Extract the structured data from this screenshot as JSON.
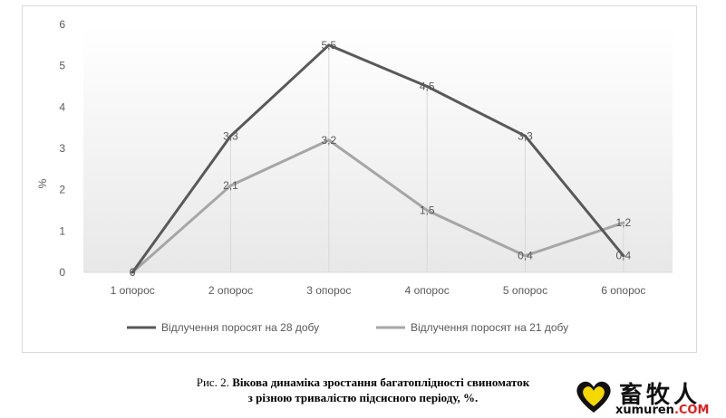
{
  "chart_data": {
    "type": "line",
    "ylabel": "%",
    "ylim": [
      0,
      6
    ],
    "yticks": [
      "0",
      "1",
      "2",
      "3",
      "4",
      "5",
      "6"
    ],
    "categories": [
      "1 опорос",
      "2 опорос",
      "3 опорос",
      "4 опорос",
      "5 опорос",
      "6 опорос"
    ],
    "series": [
      {
        "name": "Відлучення поросят на 28 добу",
        "color": "#595959",
        "values": [
          0,
          3.3,
          5.5,
          4.5,
          3.3,
          0.4
        ],
        "labels": [
          "0",
          "3,3",
          "5,5",
          "4,5",
          "3,3",
          "0,4"
        ]
      },
      {
        "name": "Відлучення поросят на 21 добу",
        "color": "#a6a6a6",
        "values": [
          0,
          2.1,
          3.2,
          1.5,
          0.4,
          1.2
        ],
        "labels": [
          "0",
          "2,1",
          "3,2",
          "1,5",
          "0,4",
          "1,2"
        ]
      }
    ],
    "legend": "bottom",
    "grid": false
  },
  "caption": {
    "prefix": "Рис. 2. ",
    "line1": "Вікова динаміка зростання багатоплідності свиноматок",
    "line2": "з різною тривалістю підсисного періоду, %."
  },
  "watermark": {
    "cn": "畜牧人",
    "url_main": "xumuren",
    "url_tld": ".COM"
  },
  "colors": {
    "plot_bg_top": "#ffffff",
    "plot_bg_bottom": "#e8e8e8",
    "logo_yellow": "#f5d800"
  }
}
